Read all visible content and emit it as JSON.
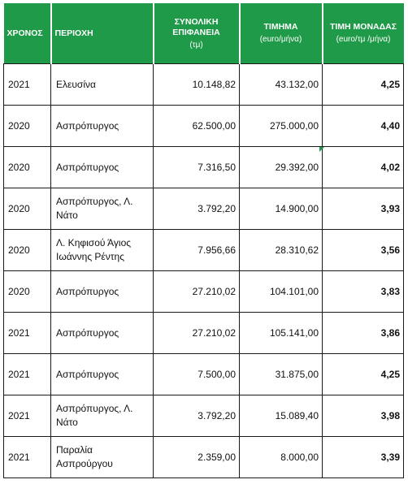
{
  "table": {
    "headers": {
      "year": "ΧΡΟΝΟΣ",
      "region": "ΠΕΡΙΟΧΗ",
      "area_line1": "ΣΥΝΟΛΙΚΗ",
      "area_line2": "ΕΠΙΦΑΝΕΙΑ",
      "area_unit": "(τμ)",
      "rent": "ΤΙΜΗΜΑ",
      "rent_unit": "(euro/μήνα)",
      "unit_price": "ΤΙΜΗ ΜΟΝΑΔΑΣ",
      "unit_price_unit": "(euro/τμ /μήνα)"
    },
    "rows": [
      {
        "year": "2021",
        "region": "Ελευσίνα",
        "area": "10.148,82",
        "rent": "43.132,00",
        "unit_price": "4,25"
      },
      {
        "year": "2020",
        "region": "Ασπρόπυργος",
        "area": "62.500,00",
        "rent": "275.000,00",
        "unit_price": "4,40"
      },
      {
        "year": "2020",
        "region": "Ασπρόπυργος",
        "area": "7.316,50",
        "rent": "29.392,00",
        "unit_price": "4,02"
      },
      {
        "year": "2020",
        "region": "Ασπρόπυργος, Λ. Νάτο",
        "area": "3.792,20",
        "rent": "14.900,00",
        "unit_price": "3,93"
      },
      {
        "year": "2020",
        "region": "Λ. Κηφισού Άγιος Ιωάννης Ρέντης",
        "area": "7.956,66",
        "rent": "28.310,62",
        "unit_price": "3,56"
      },
      {
        "year": "2020",
        "region": "Ασπρόπυργος",
        "area": "27.210,02",
        "rent": "104.101,00",
        "unit_price": "3,83"
      },
      {
        "year": "2021",
        "region": "Ασπρόπυργος",
        "area": "27.210,02",
        "rent": "105.141,00",
        "unit_price": "3,86"
      },
      {
        "year": "2021",
        "region": "Ασπρόπυργος",
        "area": "7.500,00",
        "rent": "31.875,00",
        "unit_price": "4,25"
      },
      {
        "year": "2021",
        "region": "Ασπρόπυργος, Λ. Νάτο",
        "area": "3.792,20",
        "rent": "15.089,40",
        "unit_price": "3,98"
      },
      {
        "year": "2021",
        "region": "Παραλία Ασπρούργου",
        "area": "2.359,00",
        "rent": "8.000,00",
        "unit_price": "3,39"
      }
    ]
  }
}
